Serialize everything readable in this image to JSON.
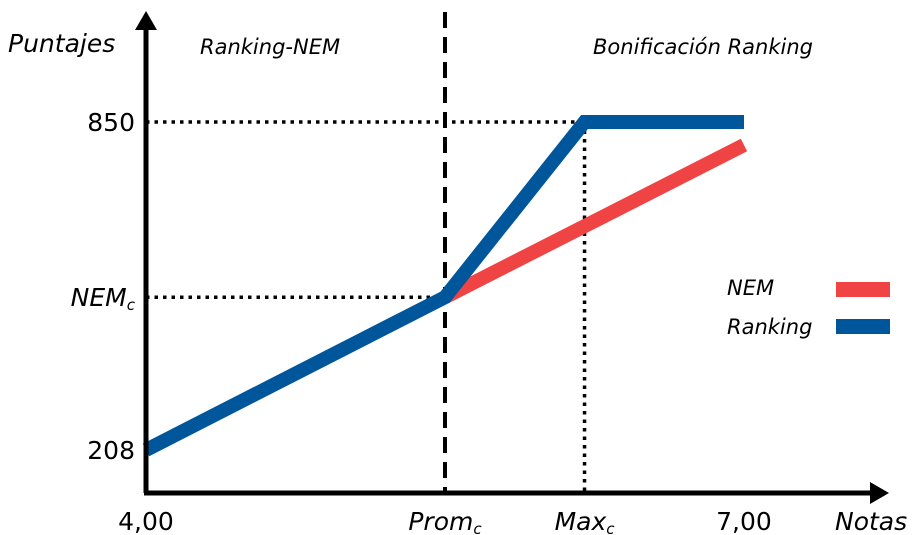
{
  "chart_data": {
    "type": "line",
    "ylabel": "Puntajes",
    "xlabel": "Notas",
    "regions": [
      "Ranking-NEM",
      "Bonificación Ranking"
    ],
    "x_ticks": [
      {
        "main": "4,00",
        "sub": ""
      },
      {
        "main": "Prom",
        "sub": "c"
      },
      {
        "main": "Max",
        "sub": "c"
      },
      {
        "main": "7,00",
        "sub": ""
      }
    ],
    "y_ticks": [
      {
        "main": "208",
        "sub": ""
      },
      {
        "main": "NEM",
        "sub": "c"
      },
      {
        "main": "850",
        "sub": ""
      }
    ],
    "series": [
      {
        "name": "NEM",
        "color": "#f04444",
        "points": [
          [
            4.0,
            208
          ],
          [
            5.5,
            507
          ],
          [
            7.0,
            805
          ]
        ]
      },
      {
        "name": "Ranking",
        "color": "#00569b",
        "points": [
          [
            4.0,
            208
          ],
          [
            5.5,
            507
          ],
          [
            6.2,
            850
          ],
          [
            7.0,
            850
          ]
        ]
      }
    ],
    "legend": "right",
    "grid": false
  }
}
